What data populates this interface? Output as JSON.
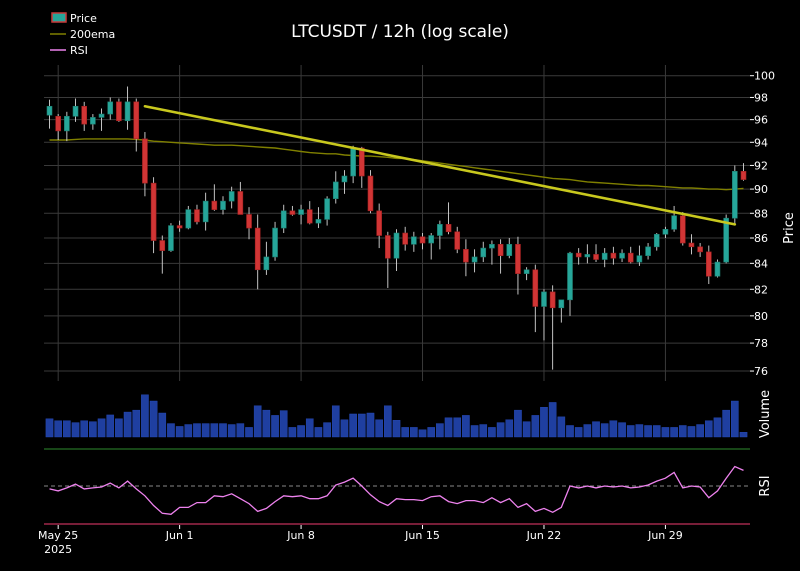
{
  "chart_data": {
    "type": "candlestick",
    "title": "LTCUSDT / 12h (log scale)",
    "legend": {
      "placement": "top-left",
      "entries": [
        {
          "name": "Price",
          "color": "#26a69a"
        },
        {
          "name": "200ema",
          "color": "#808000"
        },
        {
          "name": "RSI",
          "color": "#ee82ee"
        }
      ]
    },
    "price_panel": {
      "ylabel": "Price",
      "scale": "log",
      "ylim": [
        75.3,
        101.0
      ],
      "yticks": [
        76,
        78,
        80,
        82,
        84,
        86,
        88,
        90,
        92,
        94,
        96,
        98,
        100
      ],
      "grid": true
    },
    "volume_panel": {
      "ylabel": "Volume"
    },
    "rsi_panel": {
      "ylabel": "RSI",
      "ylim": [
        10,
        90
      ],
      "midline": 50,
      "low_line": 30
    },
    "x_axis": {
      "ticks": [
        {
          "index": 1,
          "label": "May 25",
          "sublabel": "2025"
        },
        {
          "index": 15,
          "label": "Jun 1"
        },
        {
          "index": 29,
          "label": "Jun 8"
        },
        {
          "index": 43,
          "label": "Jun 15"
        },
        {
          "index": 57,
          "label": "Jun 22"
        },
        {
          "index": 71,
          "label": "Jun 29"
        }
      ]
    },
    "ohlc": [
      [
        96.4,
        97.8,
        95.2,
        97.2
      ],
      [
        96.3,
        96.5,
        94.2,
        95.0
      ],
      [
        95.0,
        96.7,
        94.1,
        96.3
      ],
      [
        96.3,
        97.9,
        95.8,
        97.2
      ],
      [
        97.2,
        97.6,
        95.0,
        95.6
      ],
      [
        95.6,
        96.5,
        95.1,
        96.2
      ],
      [
        96.2,
        97.0,
        95.0,
        96.5
      ],
      [
        96.5,
        98.0,
        96.0,
        97.6
      ],
      [
        97.6,
        97.9,
        95.8,
        95.9
      ],
      [
        95.9,
        99.0,
        95.1,
        97.6
      ],
      [
        97.6,
        97.9,
        93.2,
        94.3
      ],
      [
        94.3,
        94.9,
        89.4,
        90.5
      ],
      [
        90.5,
        91.0,
        84.8,
        85.8
      ],
      [
        85.8,
        86.2,
        83.2,
        85.0
      ],
      [
        85.0,
        87.2,
        84.9,
        87.0
      ],
      [
        87.0,
        87.4,
        86.5,
        86.8
      ],
      [
        86.8,
        88.6,
        86.7,
        88.3
      ],
      [
        88.3,
        88.7,
        87.1,
        87.3
      ],
      [
        87.3,
        89.7,
        86.6,
        89.0
      ],
      [
        89.0,
        90.4,
        88.2,
        88.3
      ],
      [
        88.3,
        89.4,
        87.9,
        89.0
      ],
      [
        89.0,
        90.2,
        88.4,
        89.8
      ],
      [
        89.8,
        90.6,
        87.9,
        87.9
      ],
      [
        87.9,
        88.5,
        85.9,
        86.8
      ],
      [
        86.8,
        87.9,
        82.0,
        83.5
      ],
      [
        83.5,
        85.7,
        83.1,
        84.5
      ],
      [
        84.5,
        87.3,
        84.2,
        86.8
      ],
      [
        86.8,
        88.7,
        86.4,
        88.2
      ],
      [
        88.2,
        88.6,
        87.8,
        87.9
      ],
      [
        87.9,
        88.7,
        87.1,
        88.3
      ],
      [
        88.3,
        89.0,
        87.1,
        87.2
      ],
      [
        87.2,
        88.5,
        86.8,
        87.5
      ],
      [
        87.5,
        89.4,
        87.0,
        89.2
      ],
      [
        89.2,
        91.5,
        88.8,
        90.6
      ],
      [
        90.6,
        91.6,
        89.6,
        91.1
      ],
      [
        91.1,
        93.7,
        90.5,
        93.5
      ],
      [
        93.5,
        93.6,
        90.1,
        91.1
      ],
      [
        91.1,
        91.6,
        88.0,
        88.2
      ],
      [
        88.2,
        88.8,
        85.2,
        86.2
      ],
      [
        86.2,
        86.5,
        82.1,
        84.4
      ],
      [
        84.4,
        86.7,
        83.4,
        86.4
      ],
      [
        86.4,
        86.9,
        85.0,
        85.5
      ],
      [
        85.5,
        86.5,
        84.9,
        86.1
      ],
      [
        86.1,
        86.4,
        85.1,
        85.6
      ],
      [
        85.6,
        86.4,
        84.3,
        86.2
      ],
      [
        86.2,
        87.4,
        85.1,
        87.1
      ],
      [
        87.1,
        88.9,
        86.3,
        86.5
      ],
      [
        86.5,
        86.9,
        84.8,
        85.1
      ],
      [
        85.1,
        85.9,
        83.0,
        84.1
      ],
      [
        84.1,
        85.1,
        83.3,
        84.5
      ],
      [
        84.5,
        85.7,
        84.1,
        85.2
      ],
      [
        85.2,
        85.8,
        83.9,
        85.5
      ],
      [
        85.5,
        85.9,
        83.2,
        84.6
      ],
      [
        84.6,
        86.0,
        84.4,
        85.5
      ],
      [
        85.5,
        86.1,
        81.6,
        83.2
      ],
      [
        83.2,
        83.7,
        82.7,
        83.5
      ],
      [
        83.5,
        83.9,
        78.8,
        80.7
      ],
      [
        80.7,
        82.0,
        78.2,
        81.8
      ],
      [
        81.8,
        82.3,
        76.1,
        80.6
      ],
      [
        80.6,
        81.0,
        79.5,
        81.2
      ],
      [
        81.2,
        84.9,
        80.0,
        84.8
      ],
      [
        84.8,
        85.2,
        83.9,
        84.5
      ],
      [
        84.5,
        85.5,
        84.0,
        84.7
      ],
      [
        84.7,
        85.5,
        84.1,
        84.3
      ],
      [
        84.3,
        85.2,
        83.7,
        84.8
      ],
      [
        84.8,
        85.3,
        83.9,
        84.4
      ],
      [
        84.4,
        85.1,
        84.1,
        84.8
      ],
      [
        84.8,
        85.3,
        84.0,
        84.1
      ],
      [
        84.1,
        85.4,
        83.8,
        84.6
      ],
      [
        84.6,
        85.6,
        84.3,
        85.3
      ],
      [
        85.3,
        86.4,
        85.0,
        86.3
      ],
      [
        86.3,
        86.9,
        86.0,
        86.7
      ],
      [
        86.7,
        88.6,
        86.5,
        87.8
      ],
      [
        87.8,
        88.1,
        85.4,
        85.6
      ],
      [
        85.6,
        86.3,
        84.7,
        85.3
      ],
      [
        85.3,
        85.6,
        84.5,
        84.9
      ],
      [
        84.9,
        85.4,
        82.4,
        83.0
      ],
      [
        83.0,
        84.3,
        82.9,
        84.1
      ],
      [
        84.1,
        87.9,
        84.0,
        87.6
      ],
      [
        87.6,
        92.0,
        87.0,
        91.5
      ],
      [
        91.5,
        92.2,
        90.7,
        90.8
      ]
    ],
    "ema200": [
      94.2,
      94.2,
      94.2,
      94.25,
      94.3,
      94.3,
      94.3,
      94.3,
      94.3,
      94.3,
      94.25,
      94.2,
      94.1,
      94.05,
      94.0,
      93.95,
      93.9,
      93.85,
      93.8,
      93.75,
      93.75,
      93.75,
      93.7,
      93.65,
      93.6,
      93.55,
      93.5,
      93.4,
      93.3,
      93.2,
      93.1,
      93.05,
      93.0,
      93.0,
      92.9,
      92.85,
      92.8,
      92.8,
      92.75,
      92.7,
      92.6,
      92.6,
      92.5,
      92.4,
      92.3,
      92.2,
      92.1,
      92.0,
      91.9,
      91.8,
      91.7,
      91.6,
      91.5,
      91.4,
      91.3,
      91.2,
      91.1,
      91.0,
      90.9,
      90.85,
      90.8,
      90.7,
      90.6,
      90.55,
      90.5,
      90.45,
      90.4,
      90.35,
      90.3,
      90.3,
      90.25,
      90.2,
      90.15,
      90.1,
      90.1,
      90.05,
      90.0,
      90.0,
      89.95,
      90.0,
      90.05
    ],
    "trendline": {
      "from": {
        "index": 11,
        "price": 97.2
      },
      "to": {
        "index": 79,
        "price": 87.1
      }
    },
    "volume": [
      0.38,
      0.34,
      0.34,
      0.3,
      0.34,
      0.32,
      0.38,
      0.46,
      0.38,
      0.52,
      0.56,
      0.88,
      0.75,
      0.5,
      0.28,
      0.22,
      0.26,
      0.28,
      0.28,
      0.28,
      0.28,
      0.26,
      0.28,
      0.2,
      0.65,
      0.56,
      0.45,
      0.55,
      0.2,
      0.24,
      0.38,
      0.2,
      0.3,
      0.65,
      0.36,
      0.48,
      0.48,
      0.5,
      0.36,
      0.65,
      0.35,
      0.2,
      0.2,
      0.15,
      0.2,
      0.28,
      0.4,
      0.4,
      0.45,
      0.24,
      0.26,
      0.2,
      0.3,
      0.36,
      0.56,
      0.32,
      0.45,
      0.62,
      0.72,
      0.42,
      0.24,
      0.2,
      0.26,
      0.32,
      0.28,
      0.34,
      0.3,
      0.24,
      0.26,
      0.24,
      0.24,
      0.2,
      0.2,
      0.24,
      0.22,
      0.26,
      0.34,
      0.4,
      0.56,
      0.75,
      0.1
    ],
    "rsi": [
      47,
      45,
      48,
      52,
      47,
      48,
      49,
      53,
      48,
      55,
      47,
      40,
      30,
      22,
      21,
      28,
      28,
      33,
      33,
      40,
      39,
      42,
      37,
      32,
      24,
      27,
      34,
      40,
      39,
      40,
      37,
      37,
      40,
      51,
      54,
      58,
      50,
      41,
      34,
      30,
      37,
      36,
      36,
      35,
      39,
      40,
      34,
      32,
      35,
      35,
      33,
      38,
      33,
      37,
      28,
      32,
      24,
      27,
      23,
      28,
      50,
      48,
      50,
      48,
      50,
      49,
      50,
      48,
      49,
      51,
      55,
      58,
      64,
      48,
      50,
      49,
      38,
      45,
      58,
      70,
      66
    ]
  }
}
